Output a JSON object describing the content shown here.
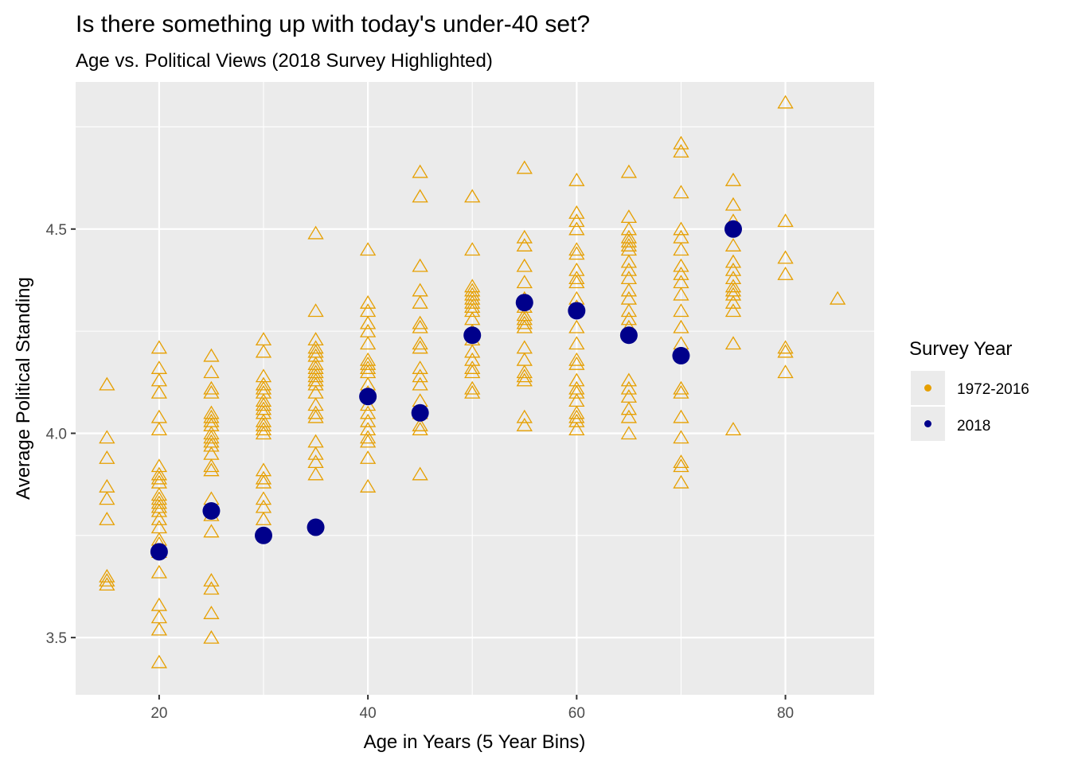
{
  "chart_data": {
    "type": "scatter",
    "title": "Is there something up with today's under-40 set?",
    "subtitle": "Age vs. Political Views (2018 Survey Highlighted)",
    "xlabel": "Age in Years (5 Year Bins)",
    "ylabel": "Average Political Standing",
    "xlim": [
      12,
      88.5
    ],
    "ylim": [
      3.36,
      4.86
    ],
    "x_ticks": [
      20,
      40,
      60,
      80
    ],
    "y_ticks": [
      3.5,
      4.0,
      4.5
    ],
    "x_tick_labels": [
      "20",
      "40",
      "60",
      "80"
    ],
    "y_tick_labels": [
      "3.5",
      "4.0",
      "4.5"
    ],
    "grid": true,
    "panel_background": "#ebebeb",
    "legend": {
      "title": "Survey Year",
      "position": "right",
      "entries": [
        {
          "label": "1972-2016",
          "color": "#e69f00"
        },
        {
          "label": "2018",
          "color": "#00008b"
        }
      ]
    },
    "series": [
      {
        "name": "1972-2016",
        "marker": "open-triangle",
        "color": "#e69f00",
        "points": [
          [
            15,
            4.12
          ],
          [
            15,
            3.99
          ],
          [
            15,
            3.94
          ],
          [
            15,
            3.87
          ],
          [
            15,
            3.84
          ],
          [
            15,
            3.79
          ],
          [
            15,
            3.65
          ],
          [
            15,
            3.64
          ],
          [
            15,
            3.63
          ],
          [
            20,
            4.21
          ],
          [
            20,
            4.16
          ],
          [
            20,
            4.13
          ],
          [
            20,
            4.1
          ],
          [
            20,
            4.04
          ],
          [
            20,
            4.01
          ],
          [
            20,
            3.92
          ],
          [
            20,
            3.9
          ],
          [
            20,
            3.89
          ],
          [
            20,
            3.88
          ],
          [
            20,
            3.85
          ],
          [
            20,
            3.84
          ],
          [
            20,
            3.83
          ],
          [
            20,
            3.82
          ],
          [
            20,
            3.81
          ],
          [
            20,
            3.79
          ],
          [
            20,
            3.77
          ],
          [
            20,
            3.74
          ],
          [
            20,
            3.73
          ],
          [
            20,
            3.71
          ],
          [
            20,
            3.66
          ],
          [
            20,
            3.58
          ],
          [
            20,
            3.55
          ],
          [
            20,
            3.52
          ],
          [
            20,
            3.44
          ],
          [
            25,
            4.19
          ],
          [
            25,
            4.15
          ],
          [
            25,
            4.11
          ],
          [
            25,
            4.1
          ],
          [
            25,
            4.05
          ],
          [
            25,
            4.04
          ],
          [
            25,
            4.03
          ],
          [
            25,
            4.02
          ],
          [
            25,
            4.0
          ],
          [
            25,
            3.99
          ],
          [
            25,
            3.98
          ],
          [
            25,
            3.97
          ],
          [
            25,
            3.95
          ],
          [
            25,
            3.92
          ],
          [
            25,
            3.91
          ],
          [
            25,
            3.84
          ],
          [
            25,
            3.8
          ],
          [
            25,
            3.76
          ],
          [
            25,
            3.64
          ],
          [
            25,
            3.62
          ],
          [
            25,
            3.56
          ],
          [
            25,
            3.5
          ],
          [
            30,
            4.23
          ],
          [
            30,
            4.2
          ],
          [
            30,
            4.14
          ],
          [
            30,
            4.12
          ],
          [
            30,
            4.11
          ],
          [
            30,
            4.1
          ],
          [
            30,
            4.08
          ],
          [
            30,
            4.07
          ],
          [
            30,
            4.06
          ],
          [
            30,
            4.05
          ],
          [
            30,
            4.03
          ],
          [
            30,
            4.02
          ],
          [
            30,
            4.01
          ],
          [
            30,
            4.0
          ],
          [
            30,
            3.91
          ],
          [
            30,
            3.89
          ],
          [
            30,
            3.88
          ],
          [
            30,
            3.84
          ],
          [
            30,
            3.82
          ],
          [
            30,
            3.79
          ],
          [
            35,
            4.49
          ],
          [
            35,
            4.3
          ],
          [
            35,
            4.23
          ],
          [
            35,
            4.21
          ],
          [
            35,
            4.2
          ],
          [
            35,
            4.19
          ],
          [
            35,
            4.17
          ],
          [
            35,
            4.16
          ],
          [
            35,
            4.15
          ],
          [
            35,
            4.14
          ],
          [
            35,
            4.13
          ],
          [
            35,
            4.12
          ],
          [
            35,
            4.1
          ],
          [
            35,
            4.07
          ],
          [
            35,
            4.05
          ],
          [
            35,
            4.04
          ],
          [
            35,
            3.98
          ],
          [
            35,
            3.95
          ],
          [
            35,
            3.93
          ],
          [
            35,
            3.9
          ],
          [
            40,
            4.45
          ],
          [
            40,
            4.32
          ],
          [
            40,
            4.3
          ],
          [
            40,
            4.27
          ],
          [
            40,
            4.25
          ],
          [
            40,
            4.22
          ],
          [
            40,
            4.18
          ],
          [
            40,
            4.17
          ],
          [
            40,
            4.16
          ],
          [
            40,
            4.15
          ],
          [
            40,
            4.12
          ],
          [
            40,
            4.1
          ],
          [
            40,
            4.07
          ],
          [
            40,
            4.05
          ],
          [
            40,
            4.03
          ],
          [
            40,
            4.01
          ],
          [
            40,
            3.99
          ],
          [
            40,
            3.98
          ],
          [
            40,
            3.94
          ],
          [
            40,
            3.87
          ],
          [
            45,
            4.64
          ],
          [
            45,
            4.58
          ],
          [
            45,
            4.41
          ],
          [
            45,
            4.35
          ],
          [
            45,
            4.32
          ],
          [
            45,
            4.27
          ],
          [
            45,
            4.26
          ],
          [
            45,
            4.22
          ],
          [
            45,
            4.21
          ],
          [
            45,
            4.16
          ],
          [
            45,
            4.14
          ],
          [
            45,
            4.12
          ],
          [
            45,
            4.08
          ],
          [
            45,
            4.05
          ],
          [
            45,
            4.02
          ],
          [
            45,
            4.01
          ],
          [
            45,
            3.9
          ],
          [
            50,
            4.58
          ],
          [
            50,
            4.45
          ],
          [
            50,
            4.36
          ],
          [
            50,
            4.35
          ],
          [
            50,
            4.34
          ],
          [
            50,
            4.33
          ],
          [
            50,
            4.32
          ],
          [
            50,
            4.31
          ],
          [
            50,
            4.3
          ],
          [
            50,
            4.28
          ],
          [
            50,
            4.25
          ],
          [
            50,
            4.23
          ],
          [
            50,
            4.2
          ],
          [
            50,
            4.18
          ],
          [
            50,
            4.16
          ],
          [
            50,
            4.15
          ],
          [
            50,
            4.11
          ],
          [
            50,
            4.1
          ],
          [
            55,
            4.65
          ],
          [
            55,
            4.48
          ],
          [
            55,
            4.46
          ],
          [
            55,
            4.41
          ],
          [
            55,
            4.37
          ],
          [
            55,
            4.33
          ],
          [
            55,
            4.31
          ],
          [
            55,
            4.29
          ],
          [
            55,
            4.28
          ],
          [
            55,
            4.27
          ],
          [
            55,
            4.26
          ],
          [
            55,
            4.21
          ],
          [
            55,
            4.18
          ],
          [
            55,
            4.15
          ],
          [
            55,
            4.14
          ],
          [
            55,
            4.13
          ],
          [
            55,
            4.04
          ],
          [
            55,
            4.02
          ],
          [
            60,
            4.62
          ],
          [
            60,
            4.54
          ],
          [
            60,
            4.52
          ],
          [
            60,
            4.5
          ],
          [
            60,
            4.45
          ],
          [
            60,
            4.44
          ],
          [
            60,
            4.4
          ],
          [
            60,
            4.38
          ],
          [
            60,
            4.37
          ],
          [
            60,
            4.33
          ],
          [
            60,
            4.31
          ],
          [
            60,
            4.26
          ],
          [
            60,
            4.22
          ],
          [
            60,
            4.18
          ],
          [
            60,
            4.17
          ],
          [
            60,
            4.13
          ],
          [
            60,
            4.11
          ],
          [
            60,
            4.1
          ],
          [
            60,
            4.08
          ],
          [
            60,
            4.05
          ],
          [
            60,
            4.04
          ],
          [
            60,
            4.03
          ],
          [
            60,
            4.01
          ],
          [
            65,
            4.64
          ],
          [
            65,
            4.53
          ],
          [
            65,
            4.5
          ],
          [
            65,
            4.48
          ],
          [
            65,
            4.47
          ],
          [
            65,
            4.46
          ],
          [
            65,
            4.45
          ],
          [
            65,
            4.42
          ],
          [
            65,
            4.4
          ],
          [
            65,
            4.38
          ],
          [
            65,
            4.35
          ],
          [
            65,
            4.33
          ],
          [
            65,
            4.3
          ],
          [
            65,
            4.28
          ],
          [
            65,
            4.26
          ],
          [
            65,
            4.13
          ],
          [
            65,
            4.11
          ],
          [
            65,
            4.09
          ],
          [
            65,
            4.06
          ],
          [
            65,
            4.04
          ],
          [
            65,
            4.0
          ],
          [
            70,
            4.71
          ],
          [
            70,
            4.69
          ],
          [
            70,
            4.59
          ],
          [
            70,
            4.5
          ],
          [
            70,
            4.48
          ],
          [
            70,
            4.45
          ],
          [
            70,
            4.41
          ],
          [
            70,
            4.39
          ],
          [
            70,
            4.37
          ],
          [
            70,
            4.34
          ],
          [
            70,
            4.3
          ],
          [
            70,
            4.26
          ],
          [
            70,
            4.22
          ],
          [
            70,
            4.11
          ],
          [
            70,
            4.1
          ],
          [
            70,
            4.04
          ],
          [
            70,
            3.99
          ],
          [
            70,
            3.93
          ],
          [
            70,
            3.92
          ],
          [
            70,
            3.88
          ],
          [
            75,
            4.62
          ],
          [
            75,
            4.56
          ],
          [
            75,
            4.52
          ],
          [
            75,
            4.46
          ],
          [
            75,
            4.42
          ],
          [
            75,
            4.4
          ],
          [
            75,
            4.38
          ],
          [
            75,
            4.36
          ],
          [
            75,
            4.35
          ],
          [
            75,
            4.34
          ],
          [
            75,
            4.32
          ],
          [
            75,
            4.3
          ],
          [
            75,
            4.22
          ],
          [
            75,
            4.01
          ],
          [
            80,
            4.81
          ],
          [
            80,
            4.52
          ],
          [
            80,
            4.43
          ],
          [
            80,
            4.39
          ],
          [
            80,
            4.21
          ],
          [
            80,
            4.2
          ],
          [
            80,
            4.15
          ],
          [
            85,
            4.33
          ]
        ]
      },
      {
        "name": "2018",
        "marker": "filled-circle",
        "color": "#00008b",
        "points": [
          [
            20,
            3.71
          ],
          [
            25,
            3.81
          ],
          [
            30,
            3.75
          ],
          [
            35,
            3.77
          ],
          [
            40,
            4.09
          ],
          [
            45,
            4.05
          ],
          [
            50,
            4.24
          ],
          [
            55,
            4.32
          ],
          [
            60,
            4.3
          ],
          [
            65,
            4.24
          ],
          [
            70,
            4.19
          ],
          [
            75,
            4.5
          ]
        ]
      }
    ]
  }
}
